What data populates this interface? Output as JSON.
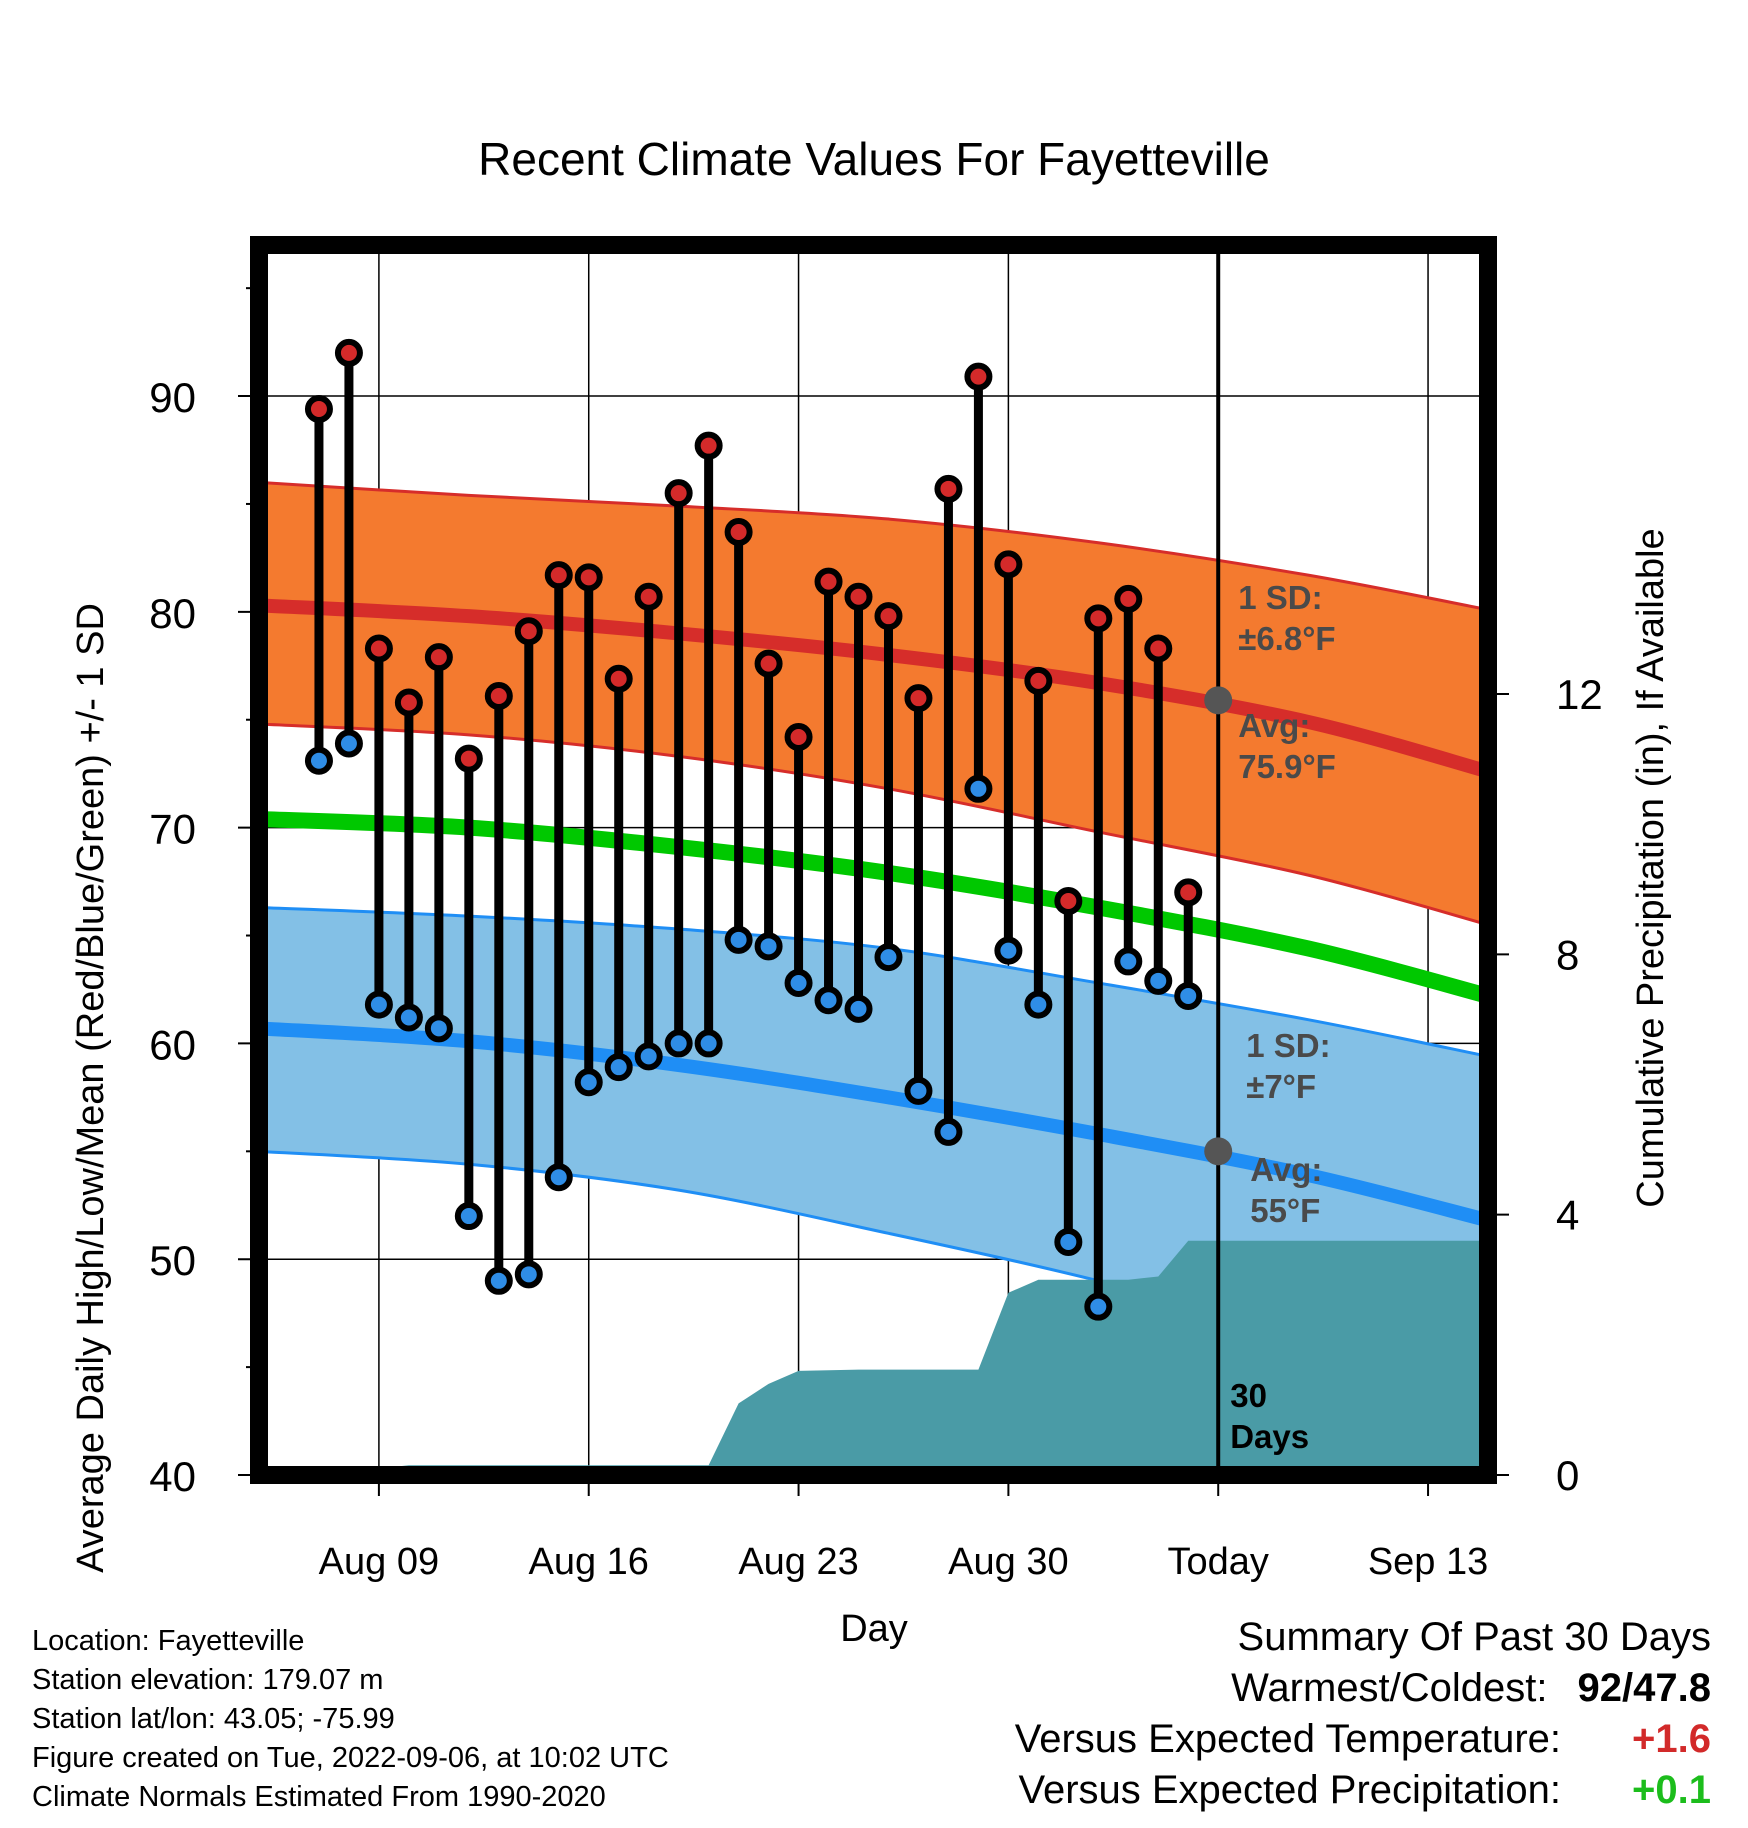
{
  "chart_data": {
    "type": "line",
    "title": "Recent Climate Values For Fayetteville",
    "xlabel": "Day",
    "ylabel": "Average Daily High/Low/Mean (Red/Blue/Green) +/- 1 SD",
    "y2label": "Cumulative Precipitation (in), If Available",
    "ylim": [
      40,
      97
    ],
    "y2lim": [
      0,
      18.9
    ],
    "yticks": [
      "40",
      "50",
      "60",
      "70",
      "80",
      "90"
    ],
    "y2ticks": [
      "0",
      "4",
      "8",
      "12"
    ],
    "xlim": [
      "2022-08-05",
      "2022-09-15"
    ],
    "xticks": [
      {
        "date": "2022-08-09",
        "label": "Aug 09"
      },
      {
        "date": "2022-08-16",
        "label": "Aug 16"
      },
      {
        "date": "2022-08-23",
        "label": "Aug 23"
      },
      {
        "date": "2022-08-30",
        "label": "Aug 30"
      },
      {
        "date": "2022-09-06",
        "label": "Today"
      },
      {
        "date": "2022-09-13",
        "label": "Sep 13"
      }
    ],
    "grid": true,
    "today": "2022-09-06",
    "days": [
      "2022-08-07",
      "2022-08-08",
      "2022-08-09",
      "2022-08-10",
      "2022-08-11",
      "2022-08-12",
      "2022-08-13",
      "2022-08-14",
      "2022-08-15",
      "2022-08-16",
      "2022-08-17",
      "2022-08-18",
      "2022-08-19",
      "2022-08-20",
      "2022-08-21",
      "2022-08-22",
      "2022-08-23",
      "2022-08-24",
      "2022-08-25",
      "2022-08-26",
      "2022-08-27",
      "2022-08-28",
      "2022-08-29",
      "2022-08-30",
      "2022-08-31",
      "2022-09-01",
      "2022-09-02",
      "2022-09-03",
      "2022-09-04",
      "2022-09-05"
    ],
    "highs": [
      89.4,
      92.0,
      78.3,
      75.8,
      77.9,
      73.2,
      76.1,
      79.1,
      81.7,
      81.6,
      76.9,
      80.7,
      85.5,
      87.7,
      83.7,
      77.6,
      74.2,
      81.4,
      80.7,
      79.8,
      76.0,
      85.7,
      90.9,
      82.2,
      76.8,
      66.6,
      79.7,
      80.6,
      78.3,
      67.0
    ],
    "lows": [
      73.1,
      73.9,
      61.8,
      61.2,
      60.7,
      52.0,
      49.0,
      49.3,
      53.8,
      58.2,
      58.9,
      59.4,
      60.0,
      60.0,
      64.8,
      64.5,
      62.8,
      62.0,
      61.6,
      64.0,
      57.8,
      55.9,
      71.8,
      64.3,
      61.8,
      50.8,
      47.8,
      63.8,
      62.9,
      62.2
    ],
    "normal_high": {
      "dates": [
        "2022-08-05",
        "2022-08-12",
        "2022-08-19",
        "2022-08-26",
        "2022-09-02",
        "2022-09-09",
        "2022-09-15"
      ],
      "avg": [
        80.3,
        79.8,
        79.0,
        78.0,
        76.7,
        74.9,
        72.6
      ],
      "sd_upper": [
        86.0,
        85.4,
        84.9,
        84.3,
        83.2,
        81.7,
        80.1
      ],
      "sd_lower": [
        74.8,
        74.3,
        73.3,
        71.8,
        69.8,
        67.8,
        65.5
      ],
      "avg_color": "#d62d2a",
      "band_color": "#f47a2f"
    },
    "normal_low": {
      "dates": [
        "2022-08-05",
        "2022-08-12",
        "2022-08-19",
        "2022-08-26",
        "2022-09-02",
        "2022-09-09",
        "2022-09-15"
      ],
      "avg": [
        60.7,
        60.1,
        59.0,
        57.5,
        55.8,
        53.9,
        51.8
      ],
      "sd_upper": [
        66.3,
        65.9,
        65.3,
        64.4,
        62.8,
        61.1,
        59.4
      ],
      "sd_lower": [
        55.0,
        54.4,
        53.2,
        51.2,
        49.0,
        46.4,
        43.5
      ],
      "avg_color": "#1f8ef5",
      "band_color": "#83c0e6"
    },
    "normal_mean": {
      "dates": [
        "2022-08-05",
        "2022-08-12",
        "2022-08-19",
        "2022-08-26",
        "2022-09-02",
        "2022-09-09",
        "2022-09-15"
      ],
      "values": [
        70.4,
        70.0,
        69.1,
        67.9,
        66.3,
        64.4,
        62.2
      ],
      "color": "#00c800"
    },
    "precip": {
      "dates": [
        "2022-08-07",
        "2022-08-09",
        "2022-08-10",
        "2022-08-15",
        "2022-08-19",
        "2022-08-20",
        "2022-08-21",
        "2022-08-22",
        "2022-08-23",
        "2022-08-25",
        "2022-08-29",
        "2022-08-30",
        "2022-08-31",
        "2022-09-02",
        "2022-09-03",
        "2022-09-04",
        "2022-09-05",
        "2022-09-15"
      ],
      "values": [
        0.0,
        0.1,
        0.15,
        0.15,
        0.15,
        0.15,
        1.1,
        1.4,
        1.6,
        1.62,
        1.62,
        2.8,
        3.0,
        3.0,
        3.0,
        3.05,
        3.6,
        3.6
      ],
      "color": "#4a9ba6"
    },
    "annotations": {
      "high_sd": [
        "1 SD:",
        "±6.8°F"
      ],
      "high_avg": [
        "Avg:",
        "75.9°F"
      ],
      "low_sd": [
        "1 SD:",
        "±7°F"
      ],
      "low_avg": [
        "Avg:",
        "55°F"
      ],
      "window": [
        "30",
        "Days"
      ],
      "today_high_avg": 75.9,
      "today_low_avg": 55.0
    },
    "high_marker_color": "#d42a2a",
    "low_marker_color": "#2f8de6"
  },
  "footer": {
    "location": "Location: Fayetteville",
    "elevation": "Station elevation: 179.07 m",
    "latlon": "Station lat/lon: 43.05; -75.99",
    "created": "Figure created on Tue, 2022-09-06, at 10:02 UTC",
    "normals": "Climate Normals Estimated From 1990-2020"
  },
  "summary": {
    "title": "Summary Of Past 30 Days",
    "warmest_label": "Warmest/Coldest:",
    "warmest_value": "92/47.8",
    "temp_label": "Versus Expected Temperature:",
    "temp_value": "+1.6",
    "temp_color": "#d22a2a",
    "precip_label": "Versus Expected Precipitation:",
    "precip_value": "+0.1",
    "precip_color": "#1cbd1c"
  }
}
